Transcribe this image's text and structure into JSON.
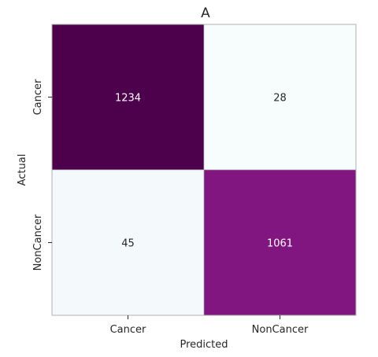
{
  "chart_data": {
    "type": "heatmap",
    "title": "A",
    "xlabel": "Predicted",
    "ylabel": "Actual",
    "x_categories": [
      "Cancer",
      "NonCancer"
    ],
    "y_categories": [
      "Cancer",
      "NonCancer"
    ],
    "values": [
      [
        1234,
        28
      ],
      [
        45,
        1061
      ]
    ],
    "colormap": {
      "min_color": "#f7fcfd",
      "max_color": "#4d004b",
      "mid_color": "#81147f"
    },
    "label_colors": {
      "dark": "#262626",
      "light": "#ffffff"
    },
    "grid": false,
    "legend": "none"
  }
}
